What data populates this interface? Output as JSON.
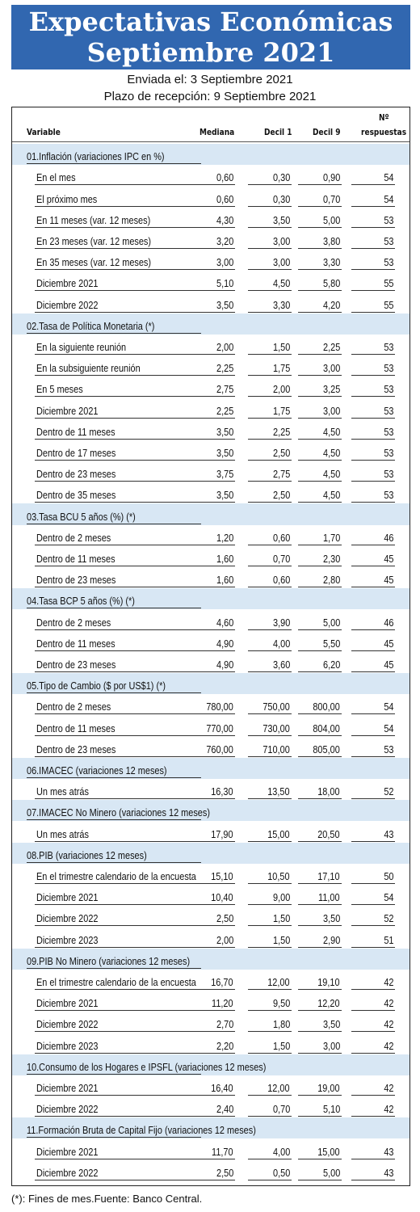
{
  "header": {
    "title_line1": "Expectativas Económicas",
    "title_line2": "Septiembre 2021",
    "sent": "Enviada el: 3 Septiembre 2021",
    "deadline": "Plazo de recepción: 9 Septiembre 2021"
  },
  "columns": {
    "variable": "Variable",
    "mediana": "Mediana",
    "decil1": "Decil 1",
    "decil9": "Decil 9",
    "respuestas_l1": "Nº",
    "respuestas_l2": "respuestas"
  },
  "sections": [
    {
      "title": "01.Inflación (variaciones IPC en %)",
      "rows": [
        {
          "label": "En el mes",
          "mediana": "0,60",
          "decil1": "0,30",
          "decil9": "0,90",
          "n": "54"
        },
        {
          "label": "El próximo mes",
          "mediana": "0,60",
          "decil1": "0,30",
          "decil9": "0,70",
          "n": "54"
        },
        {
          "label": "En 11 meses (var. 12 meses)",
          "mediana": "4,30",
          "decil1": "3,50",
          "decil9": "5,00",
          "n": "53"
        },
        {
          "label": "En 23 meses (var. 12 meses)",
          "mediana": "3,20",
          "decil1": "3,00",
          "decil9": "3,80",
          "n": "53"
        },
        {
          "label": "En 35 meses (var. 12 meses)",
          "mediana": "3,00",
          "decil1": "3,00",
          "decil9": "3,30",
          "n": "53"
        },
        {
          "label": "Diciembre 2021",
          "mediana": "5,10",
          "decil1": "4,50",
          "decil9": "5,80",
          "n": "55"
        },
        {
          "label": "Diciembre 2022",
          "mediana": "3,50",
          "decil1": "3,30",
          "decil9": "4,20",
          "n": "55"
        }
      ]
    },
    {
      "title": "02.Tasa de Política Monetaria  (*)",
      "rows": [
        {
          "label": "En la siguiente reunión",
          "mediana": "2,00",
          "decil1": "1,50",
          "decil9": "2,25",
          "n": "53"
        },
        {
          "label": "En la subsiguiente reunión",
          "mediana": "2,25",
          "decil1": "1,75",
          "decil9": "3,00",
          "n": "53"
        },
        {
          "label": "En 5 meses",
          "mediana": "2,75",
          "decil1": "2,00",
          "decil9": "3,25",
          "n": "53"
        },
        {
          "label": "Diciembre 2021",
          "mediana": "2,25",
          "decil1": "1,75",
          "decil9": "3,00",
          "n": "53"
        },
        {
          "label": "Dentro de 11 meses",
          "mediana": "3,50",
          "decil1": "2,25",
          "decil9": "4,50",
          "n": "53"
        },
        {
          "label": "Dentro de 17 meses",
          "mediana": "3,50",
          "decil1": "2,50",
          "decil9": "4,50",
          "n": "53"
        },
        {
          "label": "Dentro de 23 meses",
          "mediana": "3,75",
          "decil1": "2,75",
          "decil9": "4,50",
          "n": "53"
        },
        {
          "label": "Dentro de 35 meses",
          "mediana": "3,50",
          "decil1": "2,50",
          "decil9": "4,50",
          "n": "53"
        }
      ]
    },
    {
      "title": "03.Tasa BCU 5 años  (%)  (*)",
      "rows": [
        {
          "label": "Dentro de 2 meses",
          "mediana": "1,20",
          "decil1": "0,60",
          "decil9": "1,70",
          "n": "46"
        },
        {
          "label": "Dentro de 11 meses",
          "mediana": "1,60",
          "decil1": "0,70",
          "decil9": "2,30",
          "n": "45"
        },
        {
          "label": "Dentro de 23 meses",
          "mediana": "1,60",
          "decil1": "0,60",
          "decil9": "2,80",
          "n": "45"
        }
      ]
    },
    {
      "title": "04.Tasa BCP 5 años  (%) (*)",
      "rows": [
        {
          "label": "Dentro de 2 meses",
          "mediana": "4,60",
          "decil1": "3,90",
          "decil9": "5,00",
          "n": "46"
        },
        {
          "label": "Dentro de 11 meses",
          "mediana": "4,90",
          "decil1": "4,00",
          "decil9": "5,50",
          "n": "45"
        },
        {
          "label": "Dentro de 23 meses",
          "mediana": "4,90",
          "decil1": "3,60",
          "decil9": "6,20",
          "n": "45"
        }
      ]
    },
    {
      "title": "05.Tipo de Cambio  ($ por US$1) (*)",
      "rows": [
        {
          "label": "Dentro de 2 meses",
          "mediana": "780,00",
          "decil1": "750,00",
          "decil9": "800,00",
          "n": "54"
        },
        {
          "label": "Dentro de 11 meses",
          "mediana": "770,00",
          "decil1": "730,00",
          "decil9": "804,00",
          "n": "54"
        },
        {
          "label": "Dentro de 23 meses",
          "mediana": "760,00",
          "decil1": "710,00",
          "decil9": "805,00",
          "n": "53"
        }
      ]
    },
    {
      "title": "06.IMACEC  (variaciones 12 meses)",
      "rows": [
        {
          "label": "Un mes atrás",
          "mediana": "16,30",
          "decil1": "13,50",
          "decil9": "18,00",
          "n": "52"
        }
      ]
    },
    {
      "title": "07.IMACEC No Minero (variaciones 12 meses)",
      "rows": [
        {
          "label": "Un mes atrás",
          "mediana": "17,90",
          "decil1": "15,00",
          "decil9": "20,50",
          "n": "43"
        }
      ]
    },
    {
      "title": "08.PIB  (variaciones 12 meses)",
      "rows": [
        {
          "label": "En el trimestre calendario de la encuesta",
          "mediana": "15,10",
          "decil1": "10,50",
          "decil9": "17,10",
          "n": "50"
        },
        {
          "label": "Diciembre 2021",
          "mediana": "10,40",
          "decil1": "9,00",
          "decil9": "11,00",
          "n": "54"
        },
        {
          "label": "Diciembre 2022",
          "mediana": "2,50",
          "decil1": "1,50",
          "decil9": "3,50",
          "n": "52"
        },
        {
          "label": "Diciembre 2023",
          "mediana": "2,00",
          "decil1": "1,50",
          "decil9": "2,90",
          "n": "51"
        }
      ]
    },
    {
      "title": "09.PIB No Minero (variaciones 12 meses)",
      "rows": [
        {
          "label": "En el trimestre calendario de la encuesta",
          "mediana": "16,70",
          "decil1": "12,00",
          "decil9": "19,10",
          "n": "42"
        },
        {
          "label": "Diciembre 2021",
          "mediana": "11,20",
          "decil1": "9,50",
          "decil9": "12,20",
          "n": "42"
        },
        {
          "label": "Diciembre 2022",
          "mediana": "2,70",
          "decil1": "1,80",
          "decil9": "3,50",
          "n": "42"
        },
        {
          "label": "Diciembre 2023",
          "mediana": "2,20",
          "decil1": "1,50",
          "decil9": "3,00",
          "n": "42"
        }
      ]
    },
    {
      "title": "10.Consumo de los Hogares e IPSFL  (variaciones 12 meses)",
      "rows": [
        {
          "label": "Diciembre 2021",
          "mediana": "16,40",
          "decil1": "12,00",
          "decil9": "19,00",
          "n": "42"
        },
        {
          "label": "Diciembre 2022",
          "mediana": "2,40",
          "decil1": "0,70",
          "decil9": "5,10",
          "n": "42"
        }
      ]
    },
    {
      "title": "11.Formación Bruta de Capital Fijo  (variaciones 12 meses)",
      "rows": [
        {
          "label": "Diciembre 2021",
          "mediana": "11,70",
          "decil1": "4,00",
          "decil9": "15,00",
          "n": "43"
        },
        {
          "label": "Diciembre 2022",
          "mediana": "2,50",
          "decil1": "0,50",
          "decil9": "5,00",
          "n": "43"
        }
      ]
    }
  ],
  "footer": "(*): Fines de mes.Fuente: Banco Central."
}
